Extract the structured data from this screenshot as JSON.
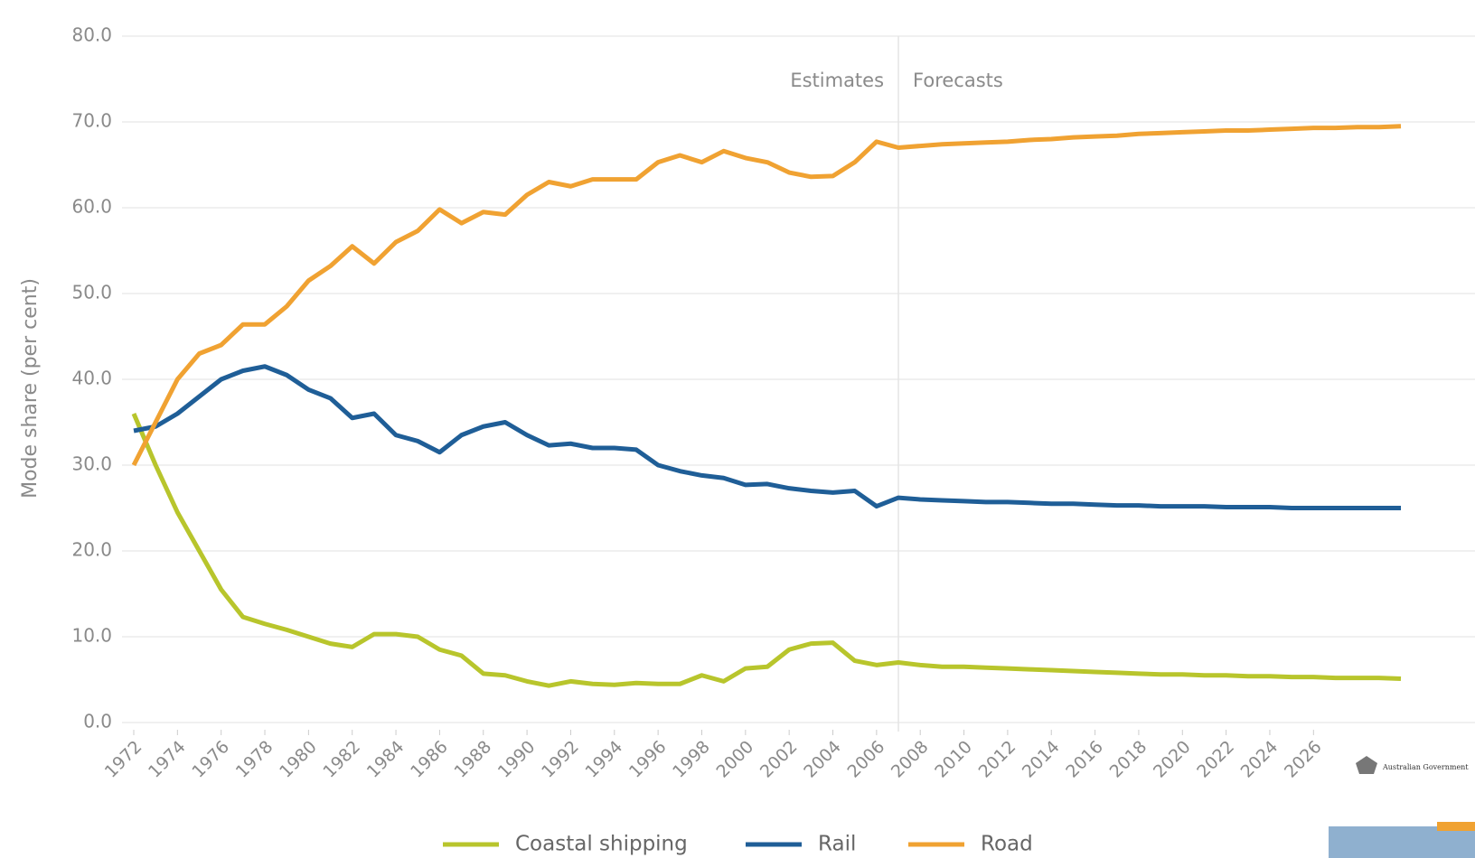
{
  "chart_data": {
    "type": "line",
    "y_label": "Mode share (per cent)",
    "annotations": [
      "Estimates",
      "Forecasts"
    ],
    "divider_x": 2007,
    "x": [
      1972,
      1973,
      1974,
      1975,
      1976,
      1977,
      1978,
      1979,
      1980,
      1981,
      1982,
      1983,
      1984,
      1985,
      1986,
      1987,
      1988,
      1989,
      1990,
      1991,
      1992,
      1993,
      1994,
      1995,
      1996,
      1997,
      1998,
      1999,
      2000,
      2001,
      2002,
      2003,
      2004,
      2005,
      2006,
      2007,
      2008,
      2009,
      2010,
      2011,
      2012,
      2013,
      2014,
      2015,
      2016,
      2017,
      2018,
      2019,
      2020,
      2021,
      2022,
      2023,
      2024,
      2025,
      2026,
      2027,
      2028,
      2029,
      2030
    ],
    "series": [
      {
        "name": "Coastal shipping",
        "color": "#b8c52c",
        "values": [
          36,
          30,
          24.5,
          20,
          15.5,
          12.3,
          11.5,
          10.8,
          10,
          9.2,
          8.8,
          10.3,
          10.3,
          10,
          8.5,
          7.8,
          5.7,
          5.5,
          4.8,
          4.3,
          4.8,
          4.5,
          4.4,
          4.6,
          4.5,
          4.5,
          5.5,
          4.8,
          6.3,
          6.5,
          8.5,
          9.2,
          9.3,
          7.2,
          6.7,
          7.0,
          6.7,
          6.5,
          6.5,
          6.4,
          6.3,
          6.2,
          6.1,
          6.0,
          5.9,
          5.8,
          5.7,
          5.6,
          5.6,
          5.5,
          5.5,
          5.4,
          5.4,
          5.3,
          5.3,
          5.2,
          5.2,
          5.2,
          5.1
        ]
      },
      {
        "name": "Rail",
        "color": "#1f5e97",
        "values": [
          34,
          34.5,
          36,
          38,
          40,
          41,
          41.5,
          40.5,
          38.8,
          37.8,
          35.5,
          36,
          33.5,
          32.8,
          31.5,
          33.5,
          34.5,
          35,
          33.5,
          32.3,
          32.5,
          32,
          32,
          31.8,
          30,
          29.3,
          28.8,
          28.5,
          27.7,
          27.8,
          27.3,
          27,
          26.8,
          27,
          25.2,
          26.2,
          26.0,
          25.9,
          25.8,
          25.7,
          25.7,
          25.6,
          25.5,
          25.5,
          25.4,
          25.3,
          25.3,
          25.2,
          25.2,
          25.2,
          25.1,
          25.1,
          25.1,
          25.0,
          25.0,
          25.0,
          25.0,
          25.0,
          25.0
        ]
      },
      {
        "name": "Road",
        "color": "#f0a232",
        "values": [
          30,
          35,
          40,
          43,
          44,
          46.4,
          46.4,
          48.5,
          51.5,
          53.2,
          55.5,
          53.5,
          56,
          57.3,
          59.8,
          58.2,
          59.5,
          59.2,
          61.5,
          63,
          62.5,
          63.3,
          63.3,
          63.3,
          65.3,
          66.1,
          65.3,
          66.6,
          65.8,
          65.3,
          64.1,
          63.6,
          63.7,
          65.3,
          67.7,
          67,
          67.2,
          67.4,
          67.5,
          67.6,
          67.7,
          67.9,
          68.0,
          68.2,
          68.3,
          68.4,
          68.6,
          68.7,
          68.8,
          68.9,
          69.0,
          69.0,
          69.1,
          69.2,
          69.3,
          69.3,
          69.4,
          69.4,
          69.5
        ]
      }
    ],
    "xlim": [
      1972,
      2030
    ],
    "xticks": [
      1972,
      1974,
      1976,
      1978,
      1980,
      1982,
      1984,
      1986,
      1988,
      1990,
      1992,
      1994,
      1996,
      1998,
      2000,
      2002,
      2004,
      2006,
      2008,
      2010,
      2012,
      2014,
      2016,
      2018,
      2020,
      2022,
      2024,
      2026
    ],
    "ylim": [
      0,
      80
    ],
    "yticks": [
      {
        "value": 0,
        "label": "0.0"
      },
      {
        "value": 10,
        "label": "10.0"
      },
      {
        "value": 20,
        "label": "20.0"
      },
      {
        "value": 30,
        "label": "30.0"
      },
      {
        "value": 40,
        "label": "40.0"
      },
      {
        "value": 50,
        "label": "50.0"
      },
      {
        "value": 60,
        "label": "60.0"
      },
      {
        "value": 70,
        "label": "70.0"
      },
      {
        "value": 80,
        "label": "80.0"
      }
    ],
    "grid": true
  },
  "logo": {
    "text": "Australian Government"
  }
}
